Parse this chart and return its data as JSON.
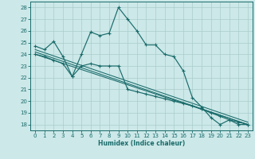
{
  "xlabel": "Humidex (Indice chaleur)",
  "xlim": [
    -0.5,
    23.5
  ],
  "ylim": [
    17.5,
    28.5
  ],
  "yticks": [
    18,
    19,
    20,
    21,
    22,
    23,
    24,
    25,
    26,
    27,
    28
  ],
  "xticks": [
    0,
    1,
    2,
    3,
    4,
    5,
    6,
    7,
    8,
    9,
    10,
    11,
    12,
    13,
    14,
    15,
    16,
    17,
    18,
    19,
    20,
    21,
    22,
    23
  ],
  "bg_color": "#cce8e8",
  "grid_color": "#aacccc",
  "line_color": "#1a6b6b",
  "line1_x": [
    0,
    1,
    2,
    3,
    4,
    5,
    6,
    7,
    8,
    9,
    10,
    11,
    12,
    13,
    14,
    15,
    16,
    17,
    18,
    19,
    20,
    21,
    22,
    23
  ],
  "line1_y": [
    24.7,
    24.4,
    25.1,
    23.8,
    22.1,
    24.0,
    25.9,
    25.6,
    25.8,
    28.0,
    27.0,
    26.0,
    24.8,
    24.8,
    24.0,
    23.8,
    22.6,
    20.3,
    19.5,
    18.6,
    18.0,
    18.4,
    18.0,
    18.0
  ],
  "line2_x": [
    0,
    1,
    2,
    3,
    4,
    5,
    6,
    7,
    8,
    9,
    10,
    11,
    12,
    13,
    14,
    15,
    16,
    17,
    18,
    19,
    20,
    21,
    22,
    23
  ],
  "line2_y": [
    24.0,
    23.8,
    23.5,
    23.2,
    22.1,
    23.0,
    23.2,
    23.0,
    23.0,
    23.0,
    21.0,
    20.8,
    20.6,
    20.4,
    20.2,
    20.0,
    19.8,
    19.6,
    19.3,
    19.0,
    18.7,
    18.4,
    18.2,
    18.0
  ],
  "diag_lines": [
    [
      [
        0,
        23
      ],
      [
        24.0,
        18.0
      ]
    ],
    [
      [
        0,
        23
      ],
      [
        24.2,
        18.0
      ]
    ],
    [
      [
        0,
        23
      ],
      [
        24.4,
        18.2
      ]
    ]
  ]
}
